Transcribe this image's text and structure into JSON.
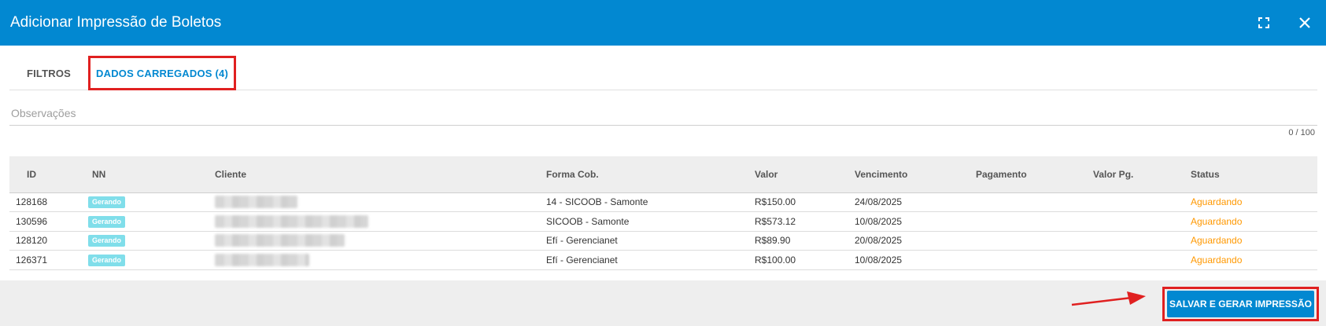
{
  "dialog": {
    "title": "Adicionar Impressão de Boletos"
  },
  "tabs": [
    {
      "label": "FILTROS"
    },
    {
      "label": "DADOS CARREGADOS (4)"
    }
  ],
  "observacoes": {
    "placeholder": "Observações",
    "value": "",
    "counter": "0 / 100"
  },
  "table": {
    "headers": [
      "ID",
      "NN",
      "Cliente",
      "Forma Cob.",
      "Valor",
      "Vencimento",
      "Pagamento",
      "Valor Pg.",
      "Status"
    ],
    "rows": [
      {
        "id": "128168",
        "nn": "Gerando",
        "cliente": "",
        "forma": "14 - SICOOB - Samonte",
        "valor": "R$150.00",
        "vencimento": "24/08/2025",
        "pagamento": "",
        "valor_pg": "",
        "status": "Aguardando"
      },
      {
        "id": "130596",
        "nn": "Gerando",
        "cliente": "",
        "forma": "SICOOB - Samonte",
        "valor": "R$573.12",
        "vencimento": "10/08/2025",
        "pagamento": "",
        "valor_pg": "",
        "status": "Aguardando"
      },
      {
        "id": "128120",
        "nn": "Gerando",
        "cliente": "",
        "forma": "Efí - Gerencianet",
        "valor": "R$89.90",
        "vencimento": "20/08/2025",
        "pagamento": "",
        "valor_pg": "",
        "status": "Aguardando"
      },
      {
        "id": "126371",
        "nn": "Gerando",
        "cliente": "",
        "forma": "Efí - Gerencianet",
        "valor": "R$100.00",
        "vencimento": "10/08/2025",
        "pagamento": "",
        "valor_pg": "",
        "status": "Aguardando"
      }
    ]
  },
  "footer": {
    "save_label": "SALVAR E GERAR IMPRESSÃO"
  },
  "icons": {
    "maximize": "fullscreen-icon",
    "close": "close-icon"
  },
  "colors": {
    "primary": "#0288d1",
    "status_waiting": "#ff9800",
    "badge": "#80deea",
    "highlight": "#e02020"
  }
}
